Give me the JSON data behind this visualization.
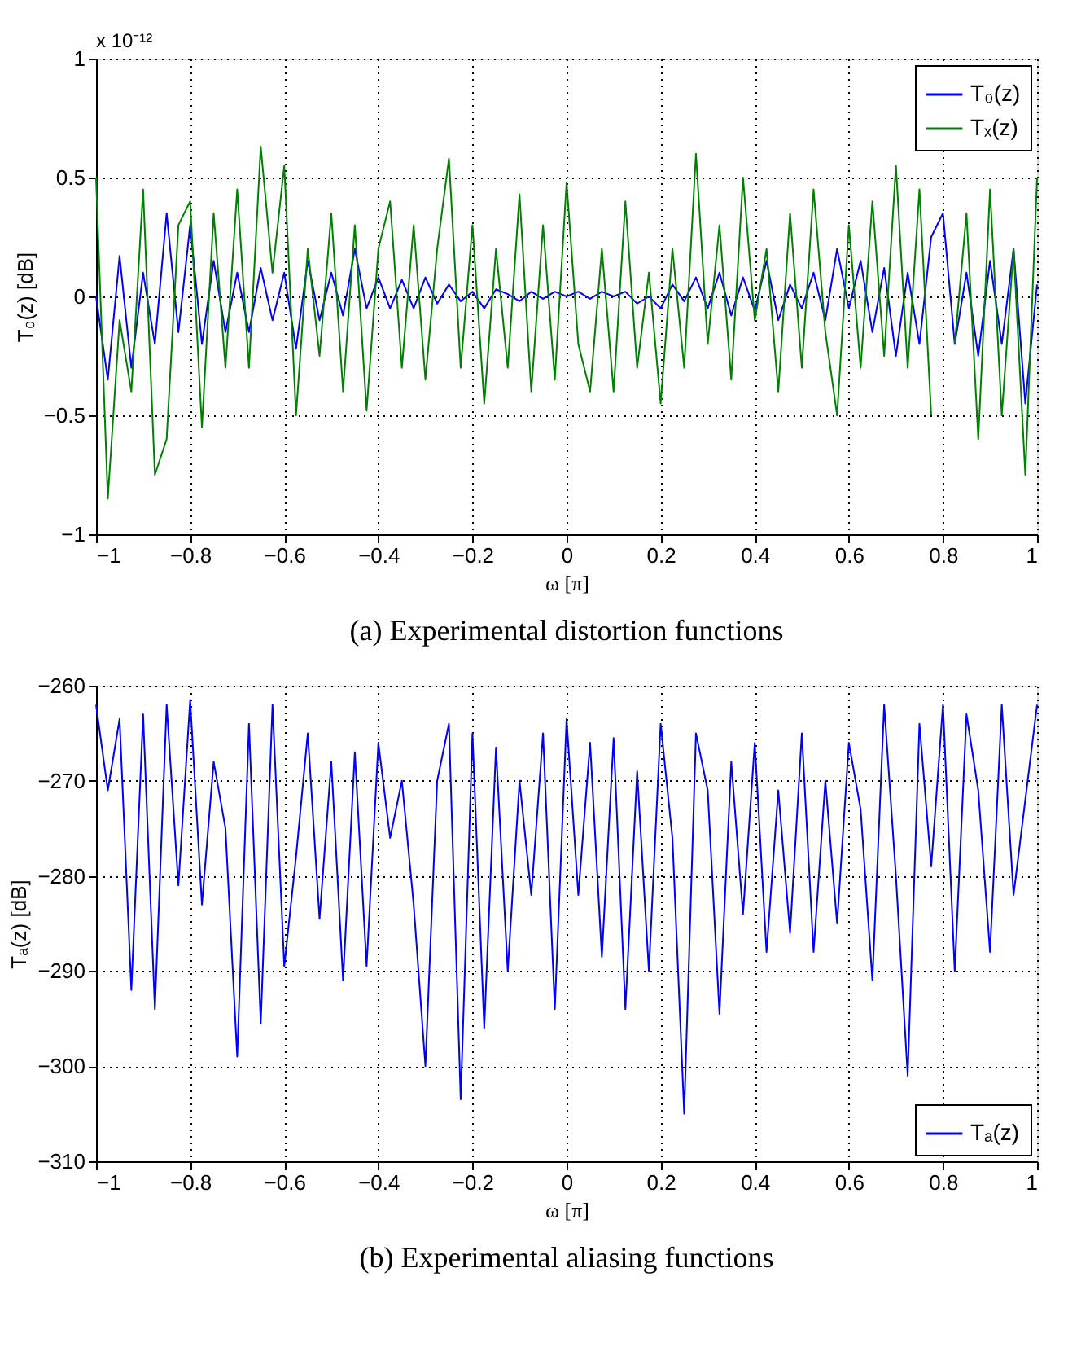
{
  "chart_data": [
    {
      "type": "line",
      "title": "(a) Experimental distortion functions",
      "xlabel": "ω [π]",
      "ylabel": "T₀(z) [dB]",
      "annotations": [
        "x 10⁻¹²"
      ],
      "xlim": [
        -1,
        1
      ],
      "xticks": [
        -1,
        -0.8,
        -0.6,
        -0.4,
        -0.2,
        0,
        0.2,
        0.4,
        0.6,
        0.8,
        1
      ],
      "ylim": [
        -1,
        1
      ],
      "yticks": [
        -1,
        -0.5,
        0,
        0.5,
        1
      ],
      "grid": true,
      "legend": "top right",
      "x": [
        -1,
        -0.975,
        -0.95,
        -0.925,
        -0.9,
        -0.875,
        -0.85,
        -0.825,
        -0.8,
        -0.775,
        -0.75,
        -0.725,
        -0.7,
        -0.675,
        -0.65,
        -0.625,
        -0.6,
        -0.575,
        -0.55,
        -0.525,
        -0.5,
        -0.475,
        -0.45,
        -0.425,
        -0.4,
        -0.375,
        -0.35,
        -0.325,
        -0.3,
        -0.275,
        -0.25,
        -0.225,
        -0.2,
        -0.175,
        -0.15,
        -0.125,
        -0.1,
        -0.075,
        -0.05,
        -0.025,
        0,
        0.025,
        0.05,
        0.075,
        0.1,
        0.125,
        0.15,
        0.175,
        0.2,
        0.225,
        0.25,
        0.275,
        0.3,
        0.325,
        0.35,
        0.375,
        0.4,
        0.425,
        0.45,
        0.475,
        0.5,
        0.525,
        0.55,
        0.575,
        0.6,
        0.625,
        0.65,
        0.675,
        0.7,
        0.725,
        0.75,
        0.775,
        0.8,
        0.825,
        0.85,
        0.875,
        0.9,
        0.925,
        0.95,
        0.975,
        1
      ],
      "series": [
        {
          "name": "T₀(z)",
          "color": "#0000ff",
          "values": [
            0.0,
            -0.35,
            0.17,
            -0.3,
            0.1,
            -0.2,
            0.35,
            -0.15,
            0.3,
            -0.2,
            0.15,
            -0.15,
            0.1,
            -0.15,
            0.12,
            -0.1,
            0.1,
            -0.22,
            0.15,
            -0.1,
            0.1,
            -0.08,
            0.2,
            -0.05,
            0.08,
            -0.05,
            0.07,
            -0.05,
            0.08,
            -0.03,
            0.05,
            -0.02,
            0.02,
            -0.05,
            0.03,
            0.01,
            -0.02,
            0.02,
            -0.01,
            0.02,
            0.0,
            0.02,
            -0.01,
            0.02,
            0.0,
            0.02,
            -0.03,
            0.0,
            -0.05,
            0.05,
            -0.02,
            0.08,
            -0.05,
            0.1,
            -0.08,
            0.08,
            -0.06,
            0.15,
            -0.1,
            0.05,
            -0.05,
            0.1,
            -0.1,
            0.2,
            -0.05,
            0.15,
            -0.15,
            0.12,
            -0.25,
            0.1,
            -0.2,
            0.25,
            0.35,
            -0.2,
            0.1,
            -0.25,
            0.15,
            -0.2,
            0.2,
            -0.45,
            0.05
          ]
        },
        {
          "name": "Tₓ(z)",
          "color": "#008000",
          "values": [
            0.5,
            -0.85,
            -0.1,
            -0.4,
            0.45,
            -0.75,
            -0.6,
            0.3,
            0.4,
            -0.55,
            0.35,
            -0.3,
            0.45,
            -0.3,
            0.63,
            0.1,
            0.55,
            -0.5,
            0.2,
            -0.25,
            0.35,
            -0.4,
            0.3,
            -0.48,
            0.2,
            0.4,
            -0.3,
            0.3,
            -0.35,
            0.2,
            0.58,
            -0.3,
            0.3,
            -0.45,
            0.2,
            -0.3,
            0.43,
            -0.4,
            0.3,
            -0.35,
            0.48,
            -0.2,
            -0.4,
            0.2,
            -0.4,
            0.4,
            -0.3,
            0.1,
            -0.45,
            0.2,
            -0.3,
            0.6,
            -0.2,
            0.3,
            -0.35,
            0.5,
            -0.1,
            0.2,
            -0.4,
            0.35,
            -0.3,
            0.45,
            -0.15,
            -0.5,
            0.3,
            -0.3,
            0.4,
            -0.25,
            0.55,
            -0.3,
            0.45,
            -0.5,
            null,
            -0.2,
            0.35,
            -0.6,
            0.45,
            -0.5,
            0.2,
            -0.75,
            0.5
          ]
        }
      ]
    },
    {
      "type": "line",
      "title": "(b) Experimental aliasing functions",
      "xlabel": "ω [π]",
      "ylabel": "Tₐ(z) [dB]",
      "xlim": [
        -1,
        1
      ],
      "xticks": [
        -1,
        -0.8,
        -0.6,
        -0.4,
        -0.2,
        0,
        0.2,
        0.4,
        0.6,
        0.8,
        1
      ],
      "ylim": [
        -310,
        -260
      ],
      "yticks": [
        -310,
        -300,
        -290,
        -280,
        -270,
        -260
      ],
      "grid": true,
      "legend": "bottom right",
      "x": [
        -1,
        -0.975,
        -0.95,
        -0.925,
        -0.9,
        -0.875,
        -0.85,
        -0.825,
        -0.8,
        -0.775,
        -0.75,
        -0.725,
        -0.7,
        -0.675,
        -0.65,
        -0.625,
        -0.6,
        -0.575,
        -0.55,
        -0.525,
        -0.5,
        -0.475,
        -0.45,
        -0.425,
        -0.4,
        -0.375,
        -0.35,
        -0.325,
        -0.3,
        -0.275,
        -0.25,
        -0.225,
        -0.2,
        -0.175,
        -0.15,
        -0.125,
        -0.1,
        -0.075,
        -0.05,
        -0.025,
        0,
        0.025,
        0.05,
        0.075,
        0.1,
        0.125,
        0.15,
        0.175,
        0.2,
        0.225,
        0.25,
        0.275,
        0.3,
        0.325,
        0.35,
        0.375,
        0.4,
        0.425,
        0.45,
        0.475,
        0.5,
        0.525,
        0.55,
        0.575,
        0.6,
        0.625,
        0.65,
        0.675,
        0.7,
        0.725,
        0.75,
        0.775,
        0.8,
        0.825,
        0.85,
        0.875,
        0.9,
        0.925,
        0.95,
        0.975,
        1
      ],
      "series": [
        {
          "name": "Tₐ(z)",
          "color": "#0000ff",
          "values": [
            -262,
            -271,
            -263.5,
            -292,
            -263,
            -294,
            -262,
            -281,
            -261.5,
            -283,
            -268,
            -275,
            -299,
            -264,
            -295.5,
            -262,
            -289.5,
            -278,
            -265,
            -284.5,
            -268,
            -291,
            -267,
            -289.5,
            -266,
            -276,
            -270,
            -283,
            -300,
            -270,
            -264,
            -303.5,
            -265,
            -296,
            -266.5,
            -290,
            -270,
            -282,
            -265,
            -294,
            -263.5,
            -282,
            -266,
            -288.5,
            -265.5,
            -294,
            -269,
            -290,
            -264,
            -276,
            -305,
            -265,
            -271,
            -294.5,
            -268,
            -284,
            -266,
            -288,
            -271,
            -286,
            -265,
            -288,
            -270,
            -285,
            -266,
            -273,
            -291,
            -262,
            -280,
            -301,
            -264,
            -279,
            -262,
            -290,
            -263,
            -271,
            -288,
            -262,
            -282,
            -272,
            -262
          ]
        }
      ]
    }
  ]
}
